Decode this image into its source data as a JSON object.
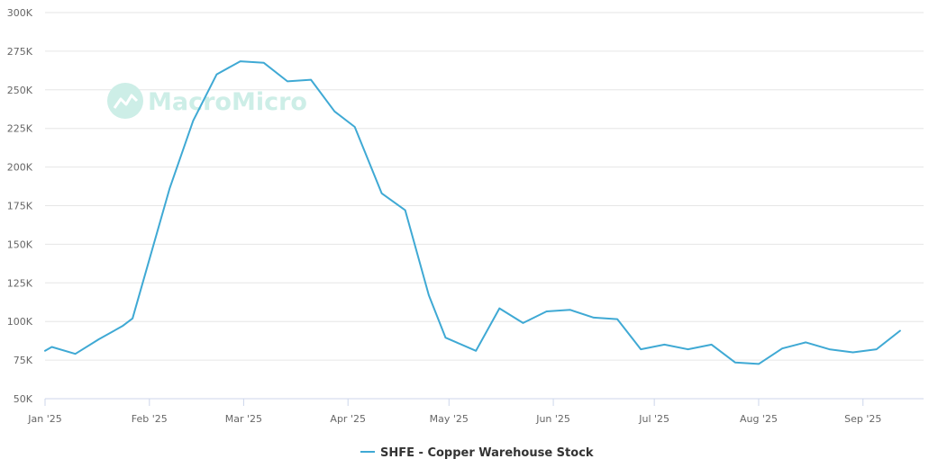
{
  "watermark": "MacroMicro",
  "colors": {
    "series": "#3fa9d4",
    "grid": "#e6e6e6",
    "axis": "#ccd6eb",
    "watermark": "#cdeee7"
  },
  "chart_data": {
    "type": "line",
    "title": "",
    "xlabel": "",
    "ylabel": "",
    "ylim": [
      50000,
      300000
    ],
    "xlim": [
      "2025-01-01",
      "2025-09-19"
    ],
    "y_ticks": [
      {
        "value": 50000,
        "label": "50K"
      },
      {
        "value": 75000,
        "label": "75K"
      },
      {
        "value": 100000,
        "label": "100K"
      },
      {
        "value": 125000,
        "label": "125K"
      },
      {
        "value": 150000,
        "label": "150K"
      },
      {
        "value": 175000,
        "label": "175K"
      },
      {
        "value": 200000,
        "label": "200K"
      },
      {
        "value": 225000,
        "label": "225K"
      },
      {
        "value": 250000,
        "label": "250K"
      },
      {
        "value": 275000,
        "label": "275K"
      },
      {
        "value": 300000,
        "label": "300K"
      }
    ],
    "x_ticks": [
      {
        "date": "2025-01-01",
        "label": "Jan '25"
      },
      {
        "date": "2025-02-01",
        "label": "Feb '25"
      },
      {
        "date": "2025-03-01",
        "label": "Mar '25"
      },
      {
        "date": "2025-04-01",
        "label": "Apr '25"
      },
      {
        "date": "2025-05-01",
        "label": "May '25"
      },
      {
        "date": "2025-06-01",
        "label": "Jun '25"
      },
      {
        "date": "2025-07-01",
        "label": "Jul '25"
      },
      {
        "date": "2025-08-01",
        "label": "Aug '25"
      },
      {
        "date": "2025-09-01",
        "label": "Sep '25"
      }
    ],
    "grid": true,
    "legend_position": "bottom-center",
    "series": [
      {
        "name": "SHFE - Copper Warehouse Stock",
        "points": [
          {
            "x": "2025-01-01",
            "y": 81000
          },
          {
            "x": "2025-01-03",
            "y": 83500
          },
          {
            "x": "2025-01-10",
            "y": 79000
          },
          {
            "x": "2025-01-17",
            "y": 88500
          },
          {
            "x": "2025-01-24",
            "y": 97000
          },
          {
            "x": "2025-01-27",
            "y": 102000
          },
          {
            "x": "2025-02-07",
            "y": 186000
          },
          {
            "x": "2025-02-14",
            "y": 230000
          },
          {
            "x": "2025-02-21",
            "y": 260000
          },
          {
            "x": "2025-02-28",
            "y": 268500
          },
          {
            "x": "2025-03-07",
            "y": 267500
          },
          {
            "x": "2025-03-14",
            "y": 255500
          },
          {
            "x": "2025-03-21",
            "y": 256500
          },
          {
            "x": "2025-03-28",
            "y": 236000
          },
          {
            "x": "2025-04-03",
            "y": 226000
          },
          {
            "x": "2025-04-11",
            "y": 183000
          },
          {
            "x": "2025-04-18",
            "y": 172000
          },
          {
            "x": "2025-04-25",
            "y": 117000
          },
          {
            "x": "2025-04-30",
            "y": 89500
          },
          {
            "x": "2025-05-09",
            "y": 81000
          },
          {
            "x": "2025-05-16",
            "y": 108500
          },
          {
            "x": "2025-05-23",
            "y": 99000
          },
          {
            "x": "2025-05-30",
            "y": 106500
          },
          {
            "x": "2025-06-06",
            "y": 107500
          },
          {
            "x": "2025-06-13",
            "y": 102500
          },
          {
            "x": "2025-06-20",
            "y": 101500
          },
          {
            "x": "2025-06-27",
            "y": 82000
          },
          {
            "x": "2025-07-04",
            "y": 85000
          },
          {
            "x": "2025-07-11",
            "y": 82000
          },
          {
            "x": "2025-07-18",
            "y": 85000
          },
          {
            "x": "2025-07-25",
            "y": 73500
          },
          {
            "x": "2025-08-01",
            "y": 72500
          },
          {
            "x": "2025-08-08",
            "y": 82500
          },
          {
            "x": "2025-08-15",
            "y": 86500
          },
          {
            "x": "2025-08-22",
            "y": 82000
          },
          {
            "x": "2025-08-29",
            "y": 80000
          },
          {
            "x": "2025-09-05",
            "y": 82000
          },
          {
            "x": "2025-09-12",
            "y": 94000
          }
        ]
      }
    ]
  }
}
